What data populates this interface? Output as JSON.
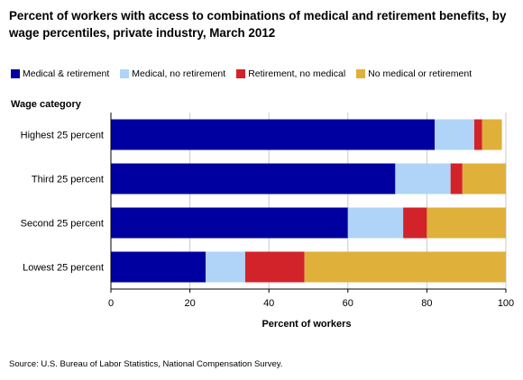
{
  "title": "Percent of workers with access to combinations of medical and retirement benefits, by wage percentiles, private industry, March 2012",
  "source": "Source: U.S. Bureau of Labor Statistics, National Compensation Survey.",
  "chart_data": {
    "type": "bar",
    "orientation": "horizontal",
    "stacked": true,
    "title": "Percent of workers with access to combinations of medical and retirement benefits, by wage percentiles, private industry, March 2012",
    "category_axis_label": "Wage category",
    "xlabel": "Percent of workers",
    "xlim": [
      0,
      100
    ],
    "xticks": [
      0,
      20,
      40,
      60,
      80,
      100
    ],
    "grid": "vertical",
    "legend_position": "top",
    "categories": [
      "Highest 25 percent",
      "Third 25 percent",
      "Second 25 percent",
      "Lowest 25 percent"
    ],
    "series": [
      {
        "name": "Medical & retirement",
        "color": "#0000a0",
        "values": [
          82,
          72,
          60,
          24
        ]
      },
      {
        "name": "Medical, no retirement",
        "color": "#b0d4f8",
        "values": [
          10,
          14,
          14,
          10
        ]
      },
      {
        "name": "Retirement, no medical",
        "color": "#d2232a",
        "values": [
          2,
          3,
          6,
          15
        ]
      },
      {
        "name": "No medical or retirement",
        "color": "#dfb03a",
        "values": [
          5,
          11,
          20,
          51
        ]
      }
    ]
  }
}
